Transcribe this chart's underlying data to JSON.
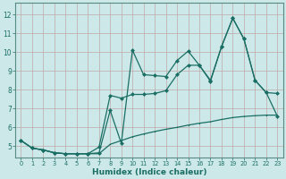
{
  "xlabel": "Humidex (Indice chaleur)",
  "bg_color": "#cce8e8",
  "grid_color": "#c0a8a8",
  "line_color": "#1a6e64",
  "xlim": [
    -0.5,
    23.5
  ],
  "ylim": [
    4.4,
    12.6
  ],
  "xticks": [
    0,
    1,
    2,
    3,
    4,
    5,
    6,
    7,
    8,
    9,
    10,
    11,
    12,
    13,
    14,
    15,
    16,
    17,
    18,
    19,
    20,
    21,
    22,
    23
  ],
  "yticks": [
    5,
    6,
    7,
    8,
    9,
    10,
    11,
    12
  ],
  "line1_x": [
    0,
    1,
    2,
    3,
    4,
    5,
    6,
    7,
    8,
    9,
    10,
    11,
    12,
    13,
    14,
    15,
    16,
    17,
    18,
    19,
    20,
    21,
    22,
    23
  ],
  "line1_y": [
    5.3,
    4.9,
    4.8,
    4.65,
    4.6,
    4.6,
    4.6,
    4.65,
    6.9,
    5.15,
    10.1,
    8.8,
    8.75,
    8.7,
    9.55,
    10.05,
    9.3,
    8.5,
    10.3,
    11.8,
    10.7,
    8.5,
    7.85,
    7.8
  ],
  "line2_x": [
    0,
    1,
    2,
    3,
    4,
    5,
    6,
    7,
    8,
    9,
    10,
    11,
    12,
    13,
    14,
    15,
    16,
    17,
    18,
    19,
    20,
    21,
    22,
    23
  ],
  "line2_y": [
    5.3,
    4.9,
    4.8,
    4.65,
    4.6,
    4.6,
    4.6,
    4.95,
    7.7,
    7.55,
    7.75,
    7.75,
    7.8,
    7.95,
    8.8,
    9.3,
    9.3,
    8.45,
    10.3,
    11.8,
    10.7,
    8.5,
    7.85,
    6.6
  ],
  "line3_x": [
    0,
    1,
    2,
    3,
    4,
    5,
    6,
    7,
    8,
    9,
    10,
    11,
    12,
    13,
    14,
    15,
    16,
    17,
    18,
    19,
    20,
    21,
    22,
    23
  ],
  "line3_y": [
    5.3,
    4.9,
    4.8,
    4.65,
    4.6,
    4.6,
    4.6,
    4.6,
    5.1,
    5.3,
    5.5,
    5.65,
    5.78,
    5.9,
    6.0,
    6.12,
    6.22,
    6.3,
    6.42,
    6.52,
    6.58,
    6.62,
    6.65,
    6.65
  ]
}
